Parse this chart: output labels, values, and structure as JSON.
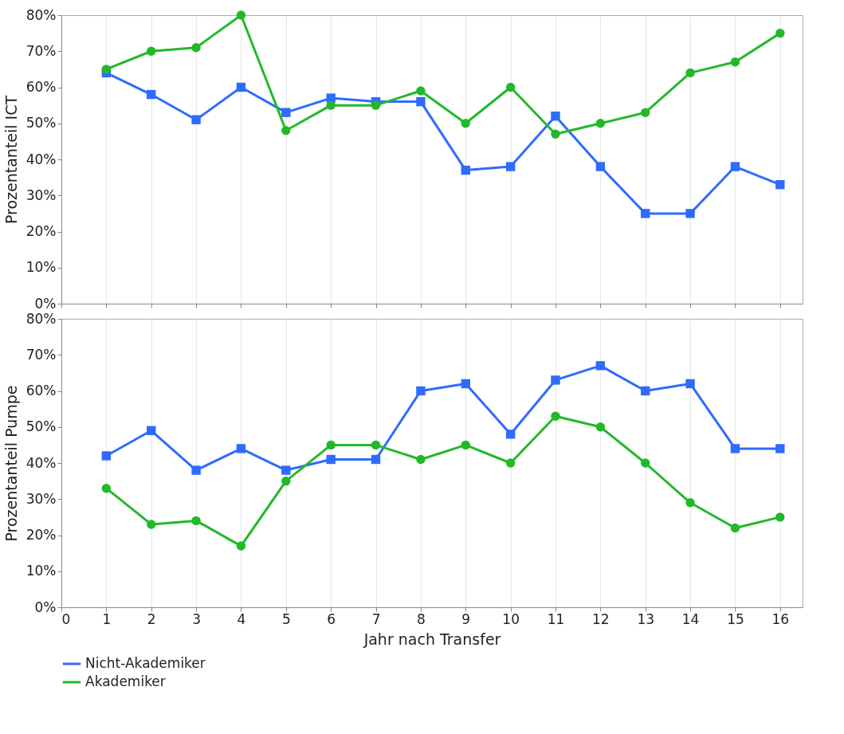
{
  "chart_data": [
    {
      "type": "line",
      "ylabel": "Prozentanteil ICT",
      "x": [
        1,
        2,
        3,
        4,
        5,
        6,
        7,
        8,
        9,
        10,
        11,
        12,
        13,
        14,
        15,
        16
      ],
      "xlim": [
        0,
        16.5
      ],
      "xticks": [
        0,
        1,
        2,
        3,
        4,
        5,
        6,
        7,
        8,
        9,
        10,
        11,
        12,
        13,
        14,
        15,
        16
      ],
      "ylim": [
        0,
        80
      ],
      "yticks": [
        {
          "value": 0,
          "label": "0%"
        },
        {
          "value": 10,
          "label": "10%"
        },
        {
          "value": 20,
          "label": "20%"
        },
        {
          "value": 30,
          "label": "30%"
        },
        {
          "value": 40,
          "label": "40%"
        },
        {
          "value": 50,
          "label": "50%"
        },
        {
          "value": 60,
          "label": "60%"
        },
        {
          "value": 70,
          "label": "70%"
        },
        {
          "value": 80,
          "label": "80%"
        }
      ],
      "grid": "x",
      "tick_labels": "y",
      "series": [
        {
          "color": "#2e6bff",
          "marker": "square",
          "values": [
            64,
            58,
            51,
            60,
            53,
            57,
            56,
            56,
            37,
            38,
            52,
            38,
            25,
            25,
            38,
            33
          ]
        },
        {
          "color": "#22b82a",
          "marker": "circle",
          "values": [
            65,
            70,
            71,
            80,
            48,
            55,
            55,
            59,
            50,
            60,
            47,
            50,
            53,
            64,
            67,
            75
          ]
        }
      ]
    },
    {
      "type": "line",
      "ylabel": "Prozentanteil Pumpe",
      "xlabel": "Jahr nach Transfer",
      "x": [
        1,
        2,
        3,
        4,
        5,
        6,
        7,
        8,
        9,
        10,
        11,
        12,
        13,
        14,
        15,
        16
      ],
      "xlim": [
        0,
        16.5
      ],
      "xticks": [
        0,
        1,
        2,
        3,
        4,
        5,
        6,
        7,
        8,
        9,
        10,
        11,
        12,
        13,
        14,
        15,
        16
      ],
      "ylim": [
        0,
        80
      ],
      "yticks": [
        {
          "value": 0,
          "label": "0%"
        },
        {
          "value": 10,
          "label": "10%"
        },
        {
          "value": 20,
          "label": "20%"
        },
        {
          "value": 30,
          "label": "30%"
        },
        {
          "value": 40,
          "label": "40%"
        },
        {
          "value": 50,
          "label": "50%"
        },
        {
          "value": 60,
          "label": "60%"
        },
        {
          "value": 70,
          "label": "70%"
        },
        {
          "value": 80,
          "label": "80%"
        }
      ],
      "grid": "x",
      "legend": "bottom left",
      "series": [
        {
          "name": "Nicht-Akademiker",
          "color": "#2e6bff",
          "marker": "square",
          "values": [
            42,
            49,
            38,
            44,
            38,
            41,
            41,
            60,
            62,
            48,
            63,
            67,
            60,
            62,
            44,
            44
          ]
        },
        {
          "name": "Akademiker",
          "color": "#22b82a",
          "marker": "circle",
          "values": [
            33,
            23,
            24,
            17,
            35,
            45,
            45,
            41,
            45,
            40,
            53,
            50,
            40,
            29,
            22,
            25
          ]
        }
      ]
    }
  ]
}
